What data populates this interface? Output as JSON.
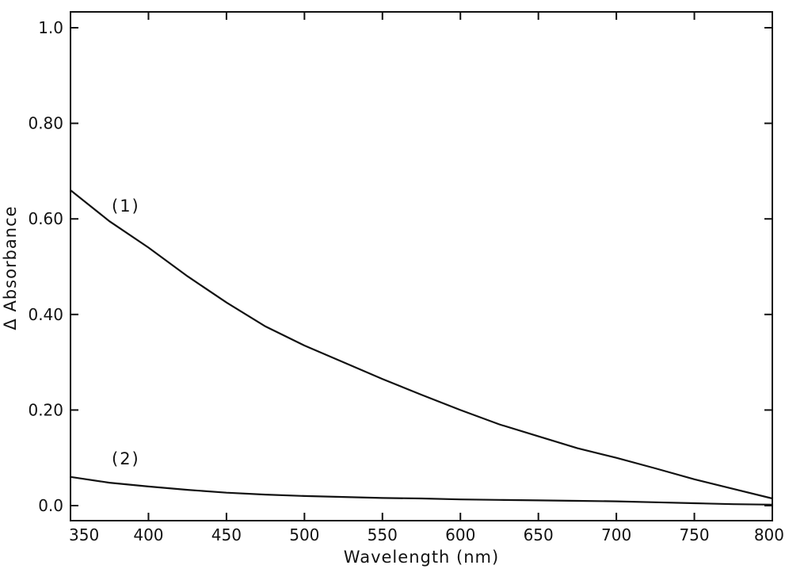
{
  "chart_data": {
    "type": "line",
    "title": "",
    "xlabel": "Wavelength (nm)",
    "ylabel": "Δ Absorbance",
    "xlim": [
      350,
      800
    ],
    "ylim": [
      0.0,
      1.0
    ],
    "x_ticks": [
      350,
      400,
      450,
      500,
      550,
      600,
      650,
      700,
      750,
      800
    ],
    "x_tick_labels": [
      "350",
      "400",
      "450",
      "500",
      "550",
      "600",
      "650",
      "700",
      "750",
      "800"
    ],
    "y_ticks": [
      0.0,
      0.2,
      0.4,
      0.6,
      0.8,
      1.0
    ],
    "y_tick_labels": [
      "0.0",
      "0.20",
      "0.40",
      "0.60",
      "0.80",
      "1.0"
    ],
    "grid": false,
    "legend": "none",
    "series": [
      {
        "label": "(1)",
        "x": [
          350,
          375,
          400,
          425,
          450,
          475,
          500,
          525,
          550,
          575,
          600,
          625,
          650,
          675,
          700,
          725,
          750,
          775,
          800
        ],
        "values": [
          0.66,
          0.595,
          0.54,
          0.48,
          0.425,
          0.375,
          0.335,
          0.3,
          0.265,
          0.232,
          0.2,
          0.17,
          0.145,
          0.12,
          0.1,
          0.078,
          0.055,
          0.035,
          0.015
        ]
      },
      {
        "label": "(2)",
        "x": [
          350,
          375,
          400,
          425,
          450,
          475,
          500,
          525,
          550,
          575,
          600,
          625,
          650,
          675,
          700,
          725,
          750,
          775,
          800
        ],
        "values": [
          0.06,
          0.048,
          0.04,
          0.033,
          0.027,
          0.023,
          0.02,
          0.018,
          0.016,
          0.015,
          0.013,
          0.012,
          0.011,
          0.01,
          0.009,
          0.007,
          0.005,
          0.003,
          0.002
        ]
      }
    ]
  }
}
